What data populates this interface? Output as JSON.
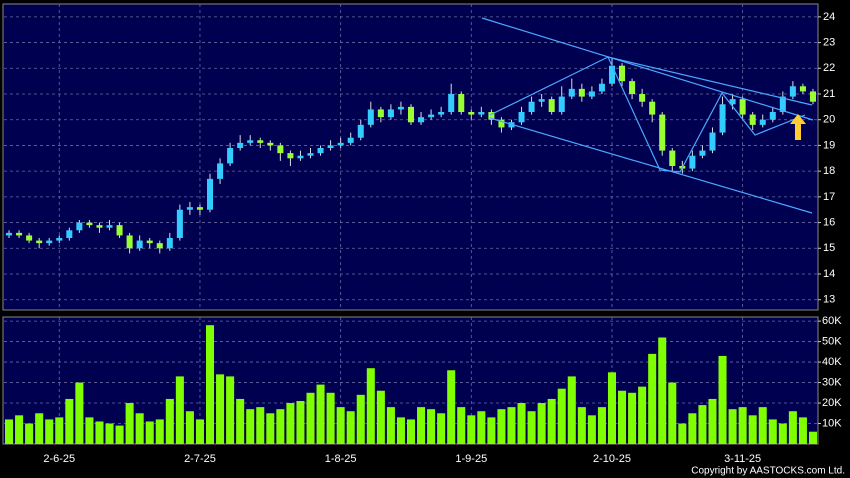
{
  "chart_data": {
    "type": "candlestick",
    "categories": [
      null,
      null,
      null,
      null,
      null,
      "2-6-25",
      null,
      null,
      null,
      null,
      null,
      null,
      null,
      null,
      null,
      null,
      null,
      null,
      null,
      "2-7-25",
      null,
      null,
      null,
      null,
      null,
      null,
      null,
      null,
      null,
      null,
      null,
      null,
      null,
      "1-8-25",
      null,
      null,
      null,
      null,
      null,
      null,
      null,
      null,
      null,
      null,
      null,
      null,
      "1-9-25",
      null,
      null,
      null,
      null,
      null,
      null,
      null,
      null,
      null,
      null,
      null,
      null,
      null,
      "2-10-25",
      null,
      null,
      null,
      null,
      null,
      null,
      null,
      null,
      null,
      null,
      null,
      null,
      "3-11-25",
      null,
      null,
      null,
      null,
      null,
      null,
      null
    ],
    "open": [
      15.5,
      15.6,
      15.5,
      15.3,
      15.2,
      15.3,
      15.4,
      15.7,
      16.0,
      15.9,
      15.8,
      15.9,
      15.5,
      15.0,
      15.3,
      15.2,
      15.0,
      15.4,
      16.5,
      16.6,
      16.5,
      17.7,
      18.3,
      18.9,
      19.1,
      19.2,
      19.1,
      19.0,
      18.7,
      18.5,
      18.6,
      18.7,
      18.9,
      19.0,
      19.1,
      19.3,
      19.8,
      20.4,
      20.1,
      20.4,
      20.5,
      19.9,
      20.1,
      20.2,
      20.3,
      21.0,
      20.3,
      20.2,
      20.3,
      20.0,
      19.7,
      19.9,
      20.3,
      20.7,
      20.8,
      20.3,
      20.9,
      21.2,
      20.9,
      21.1,
      21.4,
      22.1,
      21.5,
      21.0,
      20.7,
      20.2,
      18.8,
      18.2,
      18.1,
      18.6,
      18.8,
      19.5,
      20.6,
      20.8,
      20.2,
      19.8,
      20.0,
      20.3,
      20.9,
      21.3,
      21.1
    ],
    "high": [
      15.7,
      15.7,
      15.6,
      15.4,
      15.4,
      15.5,
      15.8,
      16.1,
      16.1,
      16.0,
      16.1,
      16.0,
      15.6,
      15.5,
      15.4,
      15.3,
      15.6,
      16.7,
      16.8,
      16.7,
      17.9,
      18.5,
      19.1,
      19.4,
      19.4,
      19.3,
      19.2,
      19.1,
      18.8,
      18.8,
      18.9,
      19.0,
      19.2,
      19.3,
      19.5,
      20.0,
      20.7,
      20.5,
      20.6,
      20.7,
      20.6,
      20.3,
      20.4,
      20.5,
      21.4,
      21.1,
      20.4,
      20.5,
      20.4,
      20.1,
      20.0,
      20.5,
      20.9,
      21.0,
      20.9,
      21.3,
      21.6,
      21.4,
      21.3,
      21.6,
      22.4,
      22.2,
      21.6,
      21.2,
      20.8,
      20.3,
      18.9,
      18.4,
      18.8,
      19.0,
      19.7,
      20.9,
      21.0,
      20.9,
      20.3,
      20.2,
      20.5,
      21.1,
      21.5,
      21.4,
      21.2
    ],
    "low": [
      15.4,
      15.4,
      15.2,
      15.0,
      15.1,
      15.2,
      15.3,
      15.6,
      15.8,
      15.6,
      15.7,
      15.4,
      14.8,
      14.9,
      15.0,
      14.8,
      14.9,
      15.3,
      16.3,
      16.3,
      16.4,
      17.5,
      18.2,
      18.8,
      19.0,
      18.9,
      18.8,
      18.4,
      18.2,
      18.4,
      18.5,
      18.6,
      18.8,
      18.9,
      19.0,
      19.2,
      19.7,
      19.9,
      20.0,
      20.2,
      19.8,
      19.8,
      20.0,
      20.1,
      20.2,
      20.2,
      20.0,
      20.1,
      19.8,
      19.5,
      19.6,
      19.8,
      20.2,
      20.5,
      20.2,
      20.2,
      20.8,
      20.7,
      20.8,
      21.0,
      21.3,
      21.3,
      20.8,
      20.5,
      19.9,
      18.6,
      18.0,
      17.9,
      18.0,
      18.5,
      18.7,
      19.4,
      20.4,
      20.0,
      19.6,
      19.7,
      19.9,
      20.2,
      20.8,
      21.0,
      20.6
    ],
    "close": [
      15.6,
      15.5,
      15.3,
      15.2,
      15.3,
      15.4,
      15.7,
      16.0,
      15.9,
      15.8,
      15.9,
      15.5,
      15.0,
      15.3,
      15.2,
      15.0,
      15.4,
      16.5,
      16.6,
      16.5,
      17.7,
      18.3,
      18.9,
      19.1,
      19.2,
      19.1,
      19.0,
      18.7,
      18.5,
      18.6,
      18.7,
      18.9,
      19.0,
      19.1,
      19.3,
      19.8,
      20.4,
      20.1,
      20.4,
      20.5,
      19.9,
      20.1,
      20.2,
      20.3,
      21.0,
      20.3,
      20.2,
      20.3,
      20.0,
      19.7,
      19.9,
      20.3,
      20.7,
      20.8,
      20.3,
      20.9,
      21.2,
      20.9,
      21.1,
      21.4,
      22.1,
      21.5,
      21.0,
      20.7,
      20.2,
      18.8,
      18.2,
      18.1,
      18.6,
      18.8,
      19.5,
      20.6,
      20.8,
      20.2,
      19.8,
      20.0,
      20.3,
      20.9,
      21.3,
      21.1,
      20.7
    ],
    "volume": [
      12000,
      14000,
      10000,
      15000,
      12000,
      13000,
      22000,
      30000,
      13000,
      11000,
      10000,
      9000,
      20000,
      15000,
      11000,
      12000,
      22000,
      33000,
      16000,
      12000,
      58000,
      34000,
      33000,
      22000,
      17000,
      18000,
      15000,
      17000,
      20000,
      21000,
      25000,
      29000,
      25000,
      18000,
      16000,
      24000,
      37000,
      26000,
      18000,
      13000,
      12000,
      18000,
      17000,
      15000,
      36000,
      18000,
      14000,
      16000,
      13000,
      17000,
      18000,
      20000,
      16000,
      20000,
      22000,
      27000,
      33000,
      18000,
      14000,
      18000,
      35000,
      26000,
      25000,
      28000,
      44000,
      52000,
      30000,
      10000,
      15000,
      19000,
      22000,
      43000,
      17000,
      18000,
      14000,
      18000,
      12000,
      10000,
      16000,
      13000,
      6000
    ],
    "up_color": "#33ccff",
    "down_color": "#99ff33",
    "volume_color": "#80ff00",
    "ylim": [
      12.6,
      24.5
    ],
    "yticks": [
      13,
      14,
      15,
      16,
      17,
      18,
      19,
      20,
      21,
      22,
      23,
      24
    ],
    "volume_ylim": [
      0,
      62000
    ],
    "volume_yticks": [
      {
        "value": 10000,
        "label": "10K"
      },
      {
        "value": 20000,
        "label": "20K"
      },
      {
        "value": 30000,
        "label": "30K"
      },
      {
        "value": 40000,
        "label": "40K"
      },
      {
        "value": 50000,
        "label": "50K"
      },
      {
        "value": 60000,
        "label": "60K"
      }
    ],
    "grid": true,
    "copyright": "Copyright by AASTOCKS.com Ltd."
  }
}
